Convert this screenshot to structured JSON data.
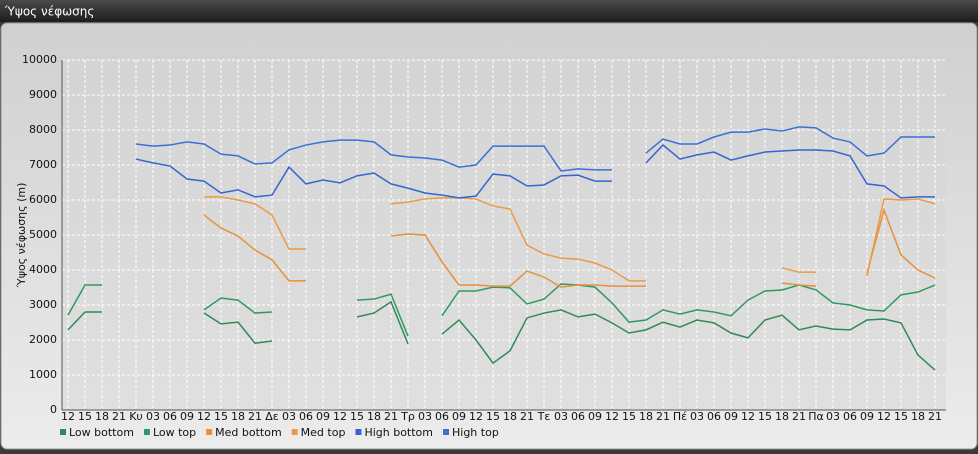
{
  "chart_data": {
    "type": "line",
    "title": "Ύψος νέφωσης",
    "y_label": "Ύψος νέφωσης (m)",
    "categories": [
      "12",
      "15",
      "18",
      "21",
      "Κυ",
      "03",
      "06",
      "09",
      "12",
      "15",
      "18",
      "21",
      "Δε",
      "03",
      "06",
      "09",
      "12",
      "15",
      "18",
      "21",
      "Τρ",
      "03",
      "06",
      "09",
      "12",
      "15",
      "18",
      "21",
      "Τε",
      "03",
      "06",
      "09",
      "12",
      "15",
      "18",
      "21",
      "Πέ",
      "03",
      "06",
      "09",
      "12",
      "15",
      "18",
      "21",
      "Πα",
      "03",
      "06",
      "09",
      "12",
      "15",
      "18",
      "21"
    ],
    "series": [
      {
        "name": "Low bottom",
        "color": "#2f8a55",
        "values": [
          2290,
          2800,
          2800,
          null,
          null,
          null,
          null,
          null,
          2770,
          2460,
          2510,
          1910,
          1970,
          null,
          null,
          null,
          null,
          2660,
          2770,
          3090,
          1890,
          null,
          2170,
          2570,
          2000,
          1340,
          1690,
          2630,
          2770,
          2860,
          2660,
          2740,
          2490,
          2200,
          2290,
          2510,
          2370,
          2570,
          2490,
          2200,
          2060,
          2570,
          2710,
          2290,
          2400,
          2310,
          2290,
          2570,
          2600,
          2490,
          1570,
          1140
        ]
      },
      {
        "name": "Low top",
        "color": "#2f9a60",
        "values": [
          2710,
          3570,
          3570,
          null,
          null,
          null,
          null,
          null,
          2860,
          3200,
          3140,
          2770,
          2800,
          null,
          null,
          null,
          null,
          3140,
          3170,
          3310,
          2110,
          null,
          2690,
          3400,
          3400,
          3510,
          3490,
          3030,
          3170,
          3600,
          3570,
          3510,
          3060,
          2510,
          2570,
          2860,
          2740,
          2860,
          2800,
          2690,
          3140,
          3400,
          3430,
          3570,
          3430,
          3060,
          3000,
          2860,
          2830,
          3290,
          3370,
          3570
        ]
      },
      {
        "name": "Med bottom",
        "color": "#e8903a",
        "values": [
          null,
          null,
          null,
          null,
          null,
          null,
          null,
          null,
          5570,
          5200,
          4970,
          4570,
          4290,
          3690,
          3690,
          null,
          null,
          null,
          null,
          4970,
          5030,
          5000,
          4230,
          3570,
          3570,
          3540,
          3540,
          3970,
          3800,
          3510,
          3570,
          3570,
          3540,
          3540,
          3540,
          null,
          null,
          null,
          null,
          null,
          null,
          null,
          3630,
          3570,
          3540,
          null,
          null,
          3910,
          5710,
          4430,
          4000,
          3770
        ]
      },
      {
        "name": "Med top",
        "color": "#ec9a45",
        "values": [
          null,
          null,
          null,
          null,
          null,
          null,
          null,
          null,
          6090,
          6090,
          6000,
          5890,
          5570,
          4600,
          4600,
          null,
          null,
          null,
          null,
          5890,
          5940,
          6030,
          6060,
          6060,
          6030,
          5830,
          5740,
          4710,
          4460,
          4340,
          4310,
          4200,
          4000,
          3690,
          3690,
          null,
          null,
          null,
          null,
          null,
          null,
          null,
          4060,
          3940,
          3940,
          null,
          null,
          3830,
          6030,
          6000,
          6030,
          5890
        ]
      },
      {
        "name": "High bottom",
        "color": "#3465d0",
        "values": [
          null,
          null,
          null,
          null,
          7170,
          7060,
          6970,
          6600,
          6540,
          6200,
          6290,
          6090,
          6140,
          6940,
          6460,
          6570,
          6490,
          6690,
          6770,
          6460,
          6340,
          6200,
          6140,
          6060,
          6110,
          6740,
          6690,
          6400,
          6430,
          6690,
          6710,
          6540,
          6540,
          null,
          7060,
          7570,
          7170,
          7290,
          7370,
          7140,
          7260,
          7370,
          7400,
          7430,
          7430,
          7400,
          7260,
          6460,
          6400,
          6060,
          6090,
          6090
        ]
      },
      {
        "name": "High top",
        "color": "#3a6fd8",
        "values": [
          null,
          null,
          null,
          null,
          7600,
          7540,
          7570,
          7660,
          7600,
          7310,
          7260,
          7030,
          7060,
          7430,
          7570,
          7660,
          7710,
          7710,
          7660,
          7290,
          7230,
          7200,
          7140,
          6940,
          7000,
          7540,
          7540,
          7540,
          7540,
          6830,
          6890,
          6860,
          6860,
          null,
          7340,
          7740,
          7600,
          7600,
          7800,
          7940,
          7940,
          8030,
          7970,
          8090,
          8060,
          7770,
          7660,
          7260,
          7340,
          7800,
          7800,
          7800
        ]
      }
    ],
    "ylim": [
      0,
      10000
    ],
    "yticks": [
      0,
      1000,
      2000,
      3000,
      4000,
      5000,
      6000,
      7000,
      8000,
      9000,
      10000
    ],
    "grid": true
  }
}
